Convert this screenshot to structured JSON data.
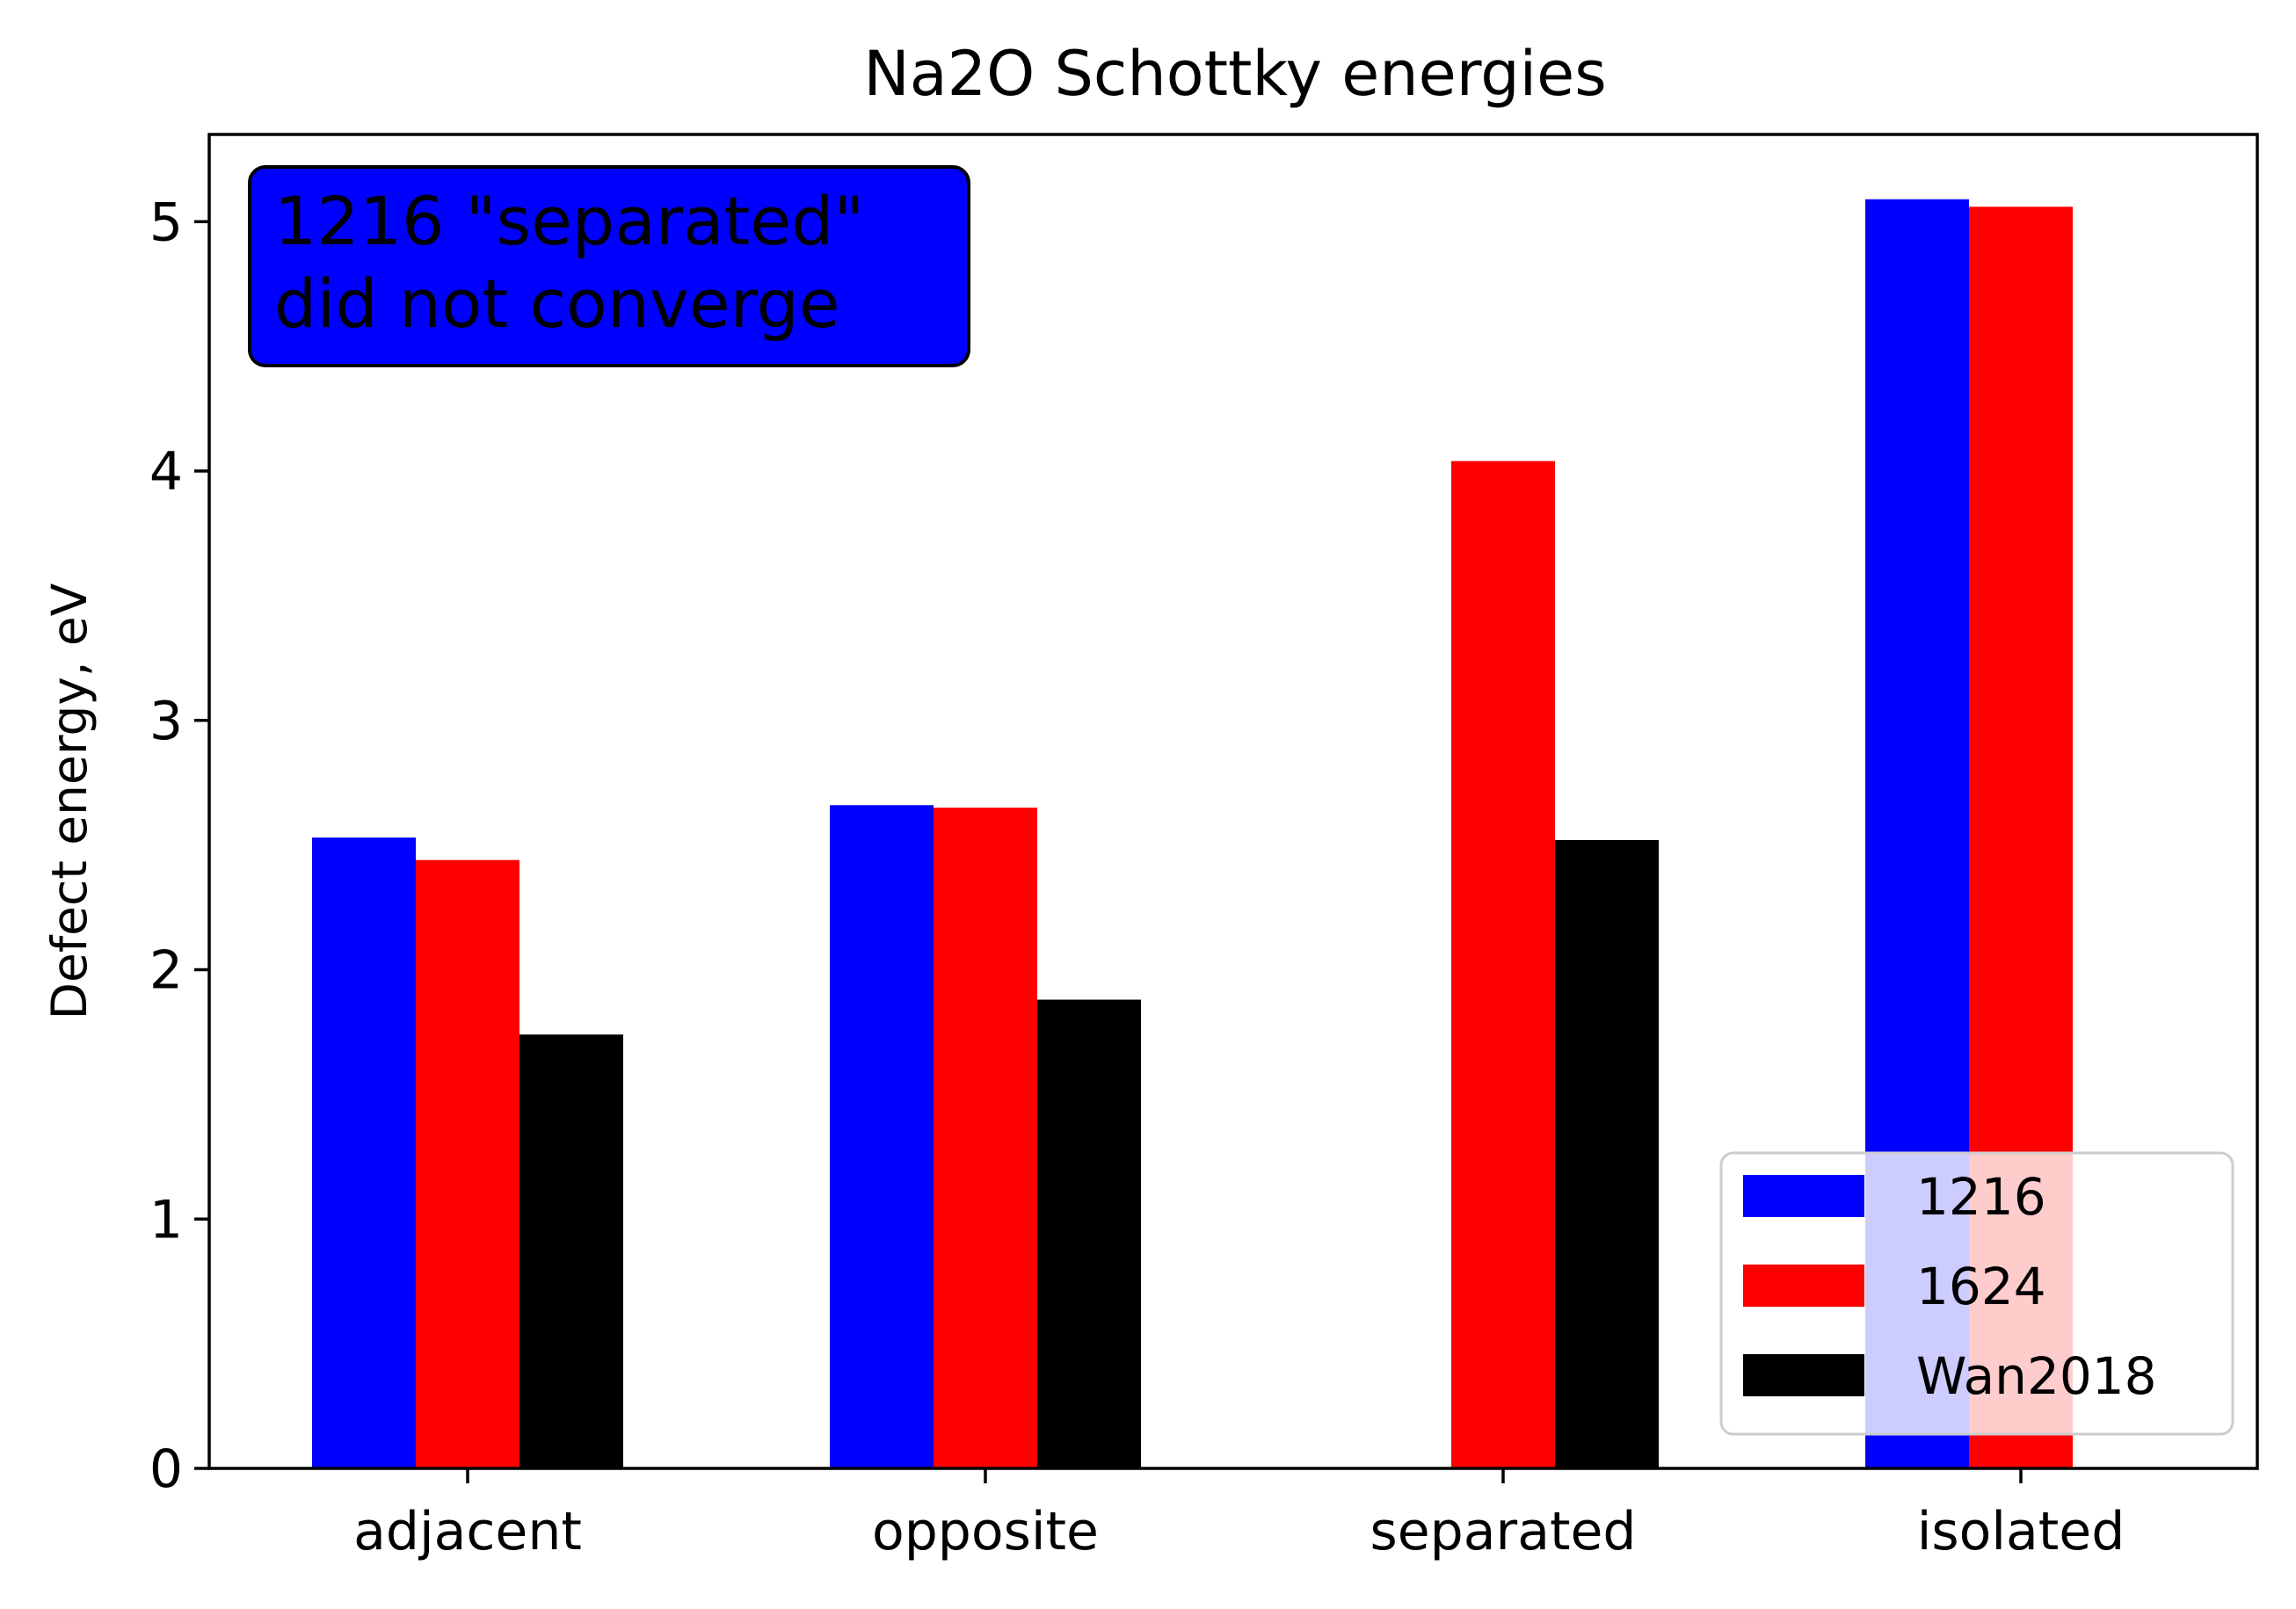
{
  "chart_data": {
    "type": "bar",
    "title": "Na2O Schottky energies",
    "xlabel": "",
    "ylabel": "Defect energy, eV",
    "categories": [
      "adjacent",
      "opposite",
      "separated",
      "isolated"
    ],
    "ylim": [
      0,
      5.35
    ],
    "yticks": [
      0,
      1,
      2,
      3,
      4,
      5
    ],
    "grid": false,
    "legend_position": "lower-right",
    "series": [
      {
        "name": "1216",
        "color": "#0000ff",
        "values": [
          2.53,
          2.66,
          null,
          5.09
        ]
      },
      {
        "name": "1624",
        "color": "#ff0000",
        "values": [
          2.44,
          2.65,
          4.04,
          5.06
        ]
      },
      {
        "name": "Wan2018",
        "color": "#000000",
        "values": [
          1.74,
          1.88,
          2.52,
          null
        ]
      }
    ],
    "annotation": {
      "lines": [
        "1216 \"separated\"",
        "did not converge"
      ],
      "background": "#0000ff"
    }
  }
}
